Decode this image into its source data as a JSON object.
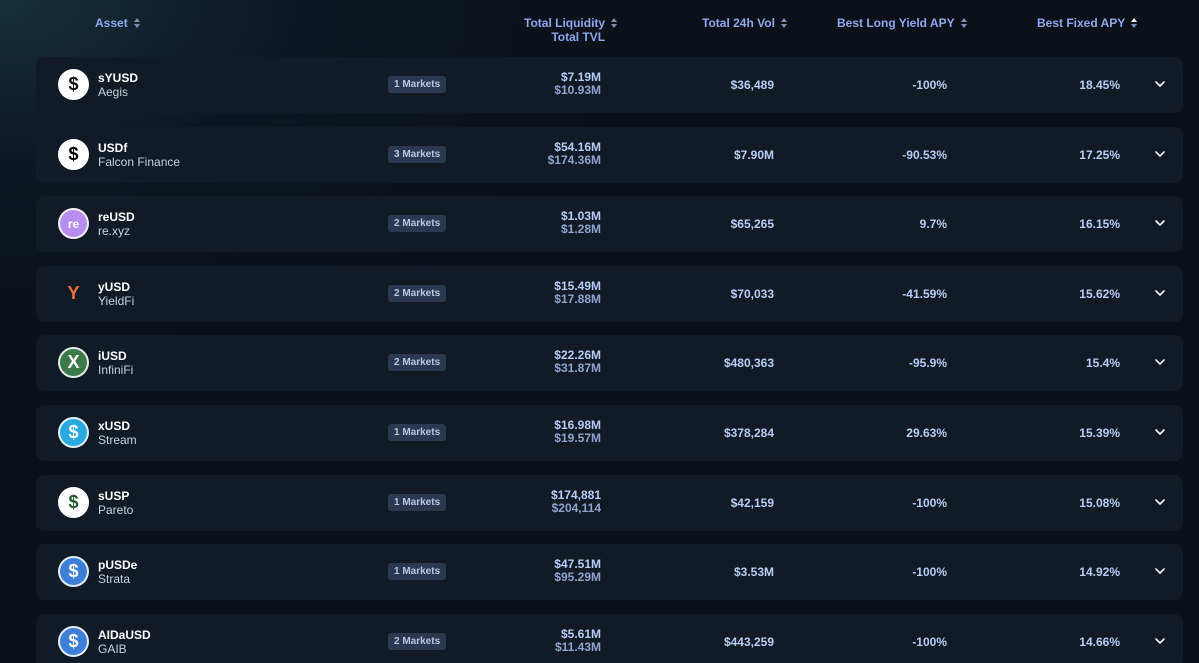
{
  "header": {
    "asset": "Asset",
    "liquidity": "Total Liquidity",
    "tvl": "Total TVL",
    "vol": "Total 24h Vol",
    "long_yield": "Best Long Yield APY",
    "fixed": "Best Fixed APY"
  },
  "rows": [
    {
      "name": "sYUSD",
      "issuer": "Aegis",
      "markets": "1 Markets",
      "liquidity": "$7.19M",
      "tvl": "$10.93M",
      "vol": "$36,489",
      "long": "-100%",
      "fixed": "18.45%",
      "icon": "aegis-icon",
      "icon_color": "#111111",
      "icon_bg": "#ffffff"
    },
    {
      "name": "USDf",
      "issuer": "Falcon Finance",
      "markets": "3 Markets",
      "liquidity": "$54.16M",
      "tvl": "$174.36M",
      "vol": "$7.90M",
      "long": "-90.53%",
      "fixed": "17.25%",
      "icon": "falcon-dollar-icon",
      "icon_color": "#000000",
      "icon_bg": "#ffffff"
    },
    {
      "name": "reUSD",
      "issuer": "re.xyz",
      "markets": "2 Markets",
      "liquidity": "$1.03M",
      "tvl": "$1.28M",
      "vol": "$65,265",
      "long": "9.7%",
      "fixed": "16.15%",
      "icon": "re-icon",
      "icon_color": "#ffffff",
      "icon_bg": "#b78ef0"
    },
    {
      "name": "yUSD",
      "issuer": "YieldFi",
      "markets": "2 Markets",
      "liquidity": "$15.49M",
      "tvl": "$17.88M",
      "vol": "$70,033",
      "long": "-41.59%",
      "fixed": "15.62%",
      "icon": "yieldfi-icon",
      "icon_color": "#f26b3a",
      "icon_bg": "#121a26"
    },
    {
      "name": "iUSD",
      "issuer": "InfiniFi",
      "markets": "2 Markets",
      "liquidity": "$22.26M",
      "tvl": "$31.87M",
      "vol": "$480,363",
      "long": "-95.9%",
      "fixed": "15.4%",
      "icon": "infinifi-icon",
      "icon_color": "#ffffff",
      "icon_bg": "#3c7a4a"
    },
    {
      "name": "xUSD",
      "issuer": "Stream",
      "markets": "1 Markets",
      "liquidity": "$16.98M",
      "tvl": "$19.57M",
      "vol": "$378,284",
      "long": "29.63%",
      "fixed": "15.39%",
      "icon": "stream-dollar-icon",
      "icon_color": "#ffffff",
      "icon_bg": "#29a9e0"
    },
    {
      "name": "sUSP",
      "issuer": "Pareto",
      "markets": "1 Markets",
      "liquidity": "$174,881",
      "tvl": "$204,114",
      "vol": "$42,159",
      "long": "-100%",
      "fixed": "15.08%",
      "icon": "pareto-dollar-icon",
      "icon_color": "#1f5a2e",
      "icon_bg": "#ffffff"
    },
    {
      "name": "pUSDe",
      "issuer": "Strata",
      "markets": "1 Markets",
      "liquidity": "$47.51M",
      "tvl": "$95.29M",
      "vol": "$3.53M",
      "long": "-100%",
      "fixed": "14.92%",
      "icon": "strata-dollar-icon",
      "icon_color": "#ffffff",
      "icon_bg": "#3d7ed6"
    },
    {
      "name": "AIDaUSD",
      "issuer": "GAIB",
      "markets": "2 Markets",
      "liquidity": "$5.61M",
      "tvl": "$11.43M",
      "vol": "$443,259",
      "long": "-100%",
      "fixed": "14.66%",
      "icon": "gaib-dollar-icon",
      "icon_color": "#ffffff",
      "icon_bg": "#3d7ed6"
    }
  ]
}
